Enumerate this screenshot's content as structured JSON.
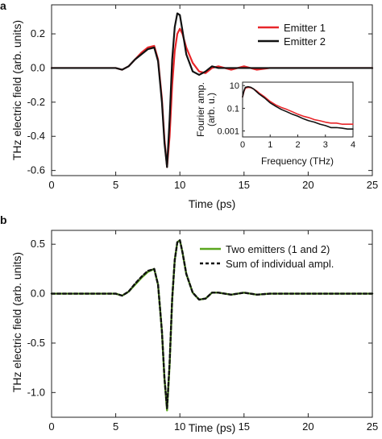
{
  "colors": {
    "emitter1": "#e8262a",
    "emitter2": "#111111",
    "two_emitters": "#5aa61e",
    "sum": "#111111",
    "axis": "#222222"
  },
  "chart_data": [
    {
      "panel": "a",
      "type": "line",
      "xlabel": "Time (ps)",
      "ylabel": "THz electric field (arb. units)",
      "xlim": [
        0,
        25
      ],
      "ylim": [
        -0.63,
        0.37
      ],
      "xticks": [
        0,
        5,
        10,
        15,
        20,
        25
      ],
      "yticks": [
        -0.6,
        -0.4,
        -0.2,
        0.0,
        0.2
      ],
      "xtick_labels": [
        "0",
        "5",
        "10",
        "15",
        "20",
        "25"
      ],
      "ytick_labels": [
        "-0.6",
        "-0.4",
        "-0.2",
        "0.0",
        "0.2"
      ],
      "legend_position": "top-right",
      "series": [
        {
          "name": "Emitter 1",
          "color": "#e8262a",
          "x": [
            0,
            2,
            4,
            5,
            5.5,
            6,
            6.5,
            7,
            7.5,
            8,
            8.3,
            8.6,
            8.8,
            9.0,
            9.2,
            9.4,
            9.6,
            9.8,
            10.0,
            10.2,
            10.5,
            11,
            11.5,
            12,
            12.5,
            13,
            14,
            15,
            16,
            17,
            18,
            19,
            20,
            21,
            22,
            23,
            24,
            25
          ],
          "y": [
            0.0,
            0.0,
            0.0,
            0.0,
            -0.01,
            0.01,
            0.05,
            0.09,
            0.12,
            0.13,
            0.05,
            -0.18,
            -0.42,
            -0.58,
            -0.4,
            -0.1,
            0.1,
            0.2,
            0.23,
            0.2,
            0.12,
            0.03,
            -0.02,
            -0.03,
            0.0,
            0.01,
            -0.01,
            0.01,
            -0.01,
            0.0,
            0.0,
            0.0,
            0.0,
            0.0,
            0.0,
            0.0,
            0.0,
            0.0
          ]
        },
        {
          "name": "Emitter 2",
          "color": "#111111",
          "x": [
            0,
            2,
            4,
            5,
            5.5,
            6,
            6.5,
            7,
            7.5,
            8,
            8.3,
            8.6,
            8.8,
            9.0,
            9.2,
            9.4,
            9.6,
            9.8,
            10.0,
            10.2,
            10.5,
            11,
            11.5,
            12,
            12.5,
            13,
            14,
            15,
            16,
            17,
            18,
            19,
            20,
            21,
            22,
            23,
            24,
            25
          ],
          "y": [
            0.0,
            0.0,
            0.0,
            0.0,
            -0.01,
            0.01,
            0.05,
            0.08,
            0.11,
            0.12,
            0.04,
            -0.2,
            -0.44,
            -0.58,
            -0.3,
            0.05,
            0.24,
            0.32,
            0.31,
            0.22,
            0.08,
            -0.02,
            -0.04,
            -0.02,
            0.01,
            0.0,
            0.0,
            0.0,
            0.0,
            0.0,
            0.0,
            0.0,
            0.0,
            0.0,
            0.0,
            0.0,
            0.0,
            0.0
          ]
        }
      ],
      "inset": {
        "type": "line",
        "xlabel": "Frequency (THz)",
        "ylabel_line1": "Fourier amp.",
        "ylabel_line2": "(arb. u.)",
        "yscale": "log",
        "xlim": [
          0,
          4
        ],
        "ylim": [
          0.0003,
          20
        ],
        "xticks": [
          0,
          1,
          2,
          3,
          4
        ],
        "xtick_labels": [
          "0",
          "1",
          "2",
          "3",
          "4"
        ],
        "yticks": [
          10,
          0.1,
          0.001
        ],
        "ytick_labels": [
          "10",
          "0.1",
          "0.001"
        ],
        "series": [
          {
            "name": "Emitter 1",
            "color": "#e8262a",
            "x": [
              0.0,
              0.05,
              0.1,
              0.2,
              0.3,
              0.4,
              0.5,
              0.6,
              0.8,
              1.0,
              1.2,
              1.4,
              1.6,
              1.8,
              2.0,
              2.2,
              2.4,
              2.6,
              2.8,
              3.0,
              3.2,
              3.4,
              3.6,
              3.8,
              4.0
            ],
            "y": [
              1.0,
              3.0,
              6.0,
              7.0,
              6.5,
              5.0,
              3.5,
              2.2,
              1.0,
              0.4,
              0.2,
              0.12,
              0.08,
              0.05,
              0.03,
              0.02,
              0.015,
              0.01,
              0.008,
              0.006,
              0.005,
              0.005,
              0.004,
              0.004,
              0.004
            ]
          },
          {
            "name": "Emitter 2",
            "color": "#111111",
            "x": [
              0.0,
              0.05,
              0.1,
              0.2,
              0.3,
              0.4,
              0.5,
              0.6,
              0.8,
              1.0,
              1.2,
              1.4,
              1.6,
              1.8,
              2.0,
              2.2,
              2.4,
              2.6,
              2.8,
              3.0,
              3.2,
              3.4,
              3.6,
              3.8,
              4.0
            ],
            "y": [
              1.0,
              3.5,
              7.0,
              8.0,
              7.0,
              5.0,
              3.0,
              1.8,
              0.8,
              0.3,
              0.15,
              0.08,
              0.05,
              0.03,
              0.02,
              0.012,
              0.008,
              0.006,
              0.004,
              0.003,
              0.002,
              0.002,
              0.0018,
              0.0015,
              0.0015
            ]
          }
        ]
      }
    },
    {
      "panel": "b",
      "type": "line",
      "xlabel": "Time (ps)",
      "ylabel": "THz electric field (arb. units)",
      "xlim": [
        0,
        25
      ],
      "ylim": [
        -1.25,
        0.64
      ],
      "xticks": [
        0,
        5,
        10,
        15,
        20,
        25
      ],
      "yticks": [
        -1.0,
        -0.5,
        0.0,
        0.5
      ],
      "xtick_labels": [
        "0",
        "5",
        "10",
        "15",
        "20",
        "25"
      ],
      "ytick_labels": [
        "-1.0",
        "-0.5",
        "0.0",
        "0.5"
      ],
      "legend_position": "top-right",
      "series": [
        {
          "name": "Two emitters (1 and 2)",
          "color": "#5aa61e",
          "style": "solid",
          "x": [
            0,
            2,
            4,
            5,
            5.5,
            6,
            6.5,
            7,
            7.5,
            8,
            8.3,
            8.6,
            8.8,
            9.0,
            9.2,
            9.4,
            9.6,
            9.8,
            10.0,
            10.2,
            10.5,
            11,
            11.5,
            12,
            12.5,
            13,
            14,
            15,
            16,
            17,
            18,
            19,
            20,
            21,
            22,
            23,
            24,
            25
          ],
          "y": [
            0.0,
            0.0,
            0.0,
            0.0,
            -0.02,
            0.02,
            0.09,
            0.16,
            0.22,
            0.25,
            0.09,
            -0.38,
            -0.86,
            -1.18,
            -0.72,
            -0.06,
            0.34,
            0.52,
            0.54,
            0.42,
            0.2,
            0.01,
            -0.06,
            -0.05,
            0.01,
            0.01,
            -0.01,
            0.01,
            -0.01,
            0.0,
            0.0,
            0.0,
            0.0,
            0.0,
            0.0,
            0.0,
            0.0,
            0.0
          ]
        },
        {
          "name": "Sum of individual ampl.",
          "color": "#111111",
          "style": "dashed",
          "x": [
            0,
            2,
            4,
            5,
            5.5,
            6,
            6.5,
            7,
            7.5,
            8,
            8.3,
            8.6,
            8.8,
            9.0,
            9.2,
            9.4,
            9.6,
            9.8,
            10.0,
            10.2,
            10.5,
            11,
            11.5,
            12,
            12.5,
            13,
            14,
            15,
            16,
            17,
            18,
            19,
            20,
            21,
            22,
            23,
            24,
            25
          ],
          "y": [
            0.0,
            0.0,
            0.0,
            0.0,
            -0.02,
            0.02,
            0.1,
            0.17,
            0.23,
            0.25,
            0.09,
            -0.38,
            -0.86,
            -1.16,
            -0.7,
            -0.05,
            0.34,
            0.52,
            0.54,
            0.42,
            0.2,
            0.01,
            -0.06,
            -0.05,
            0.01,
            0.01,
            -0.01,
            0.01,
            -0.01,
            0.0,
            0.0,
            0.0,
            0.0,
            0.0,
            0.0,
            0.0,
            0.0,
            0.0
          ]
        }
      ]
    }
  ]
}
